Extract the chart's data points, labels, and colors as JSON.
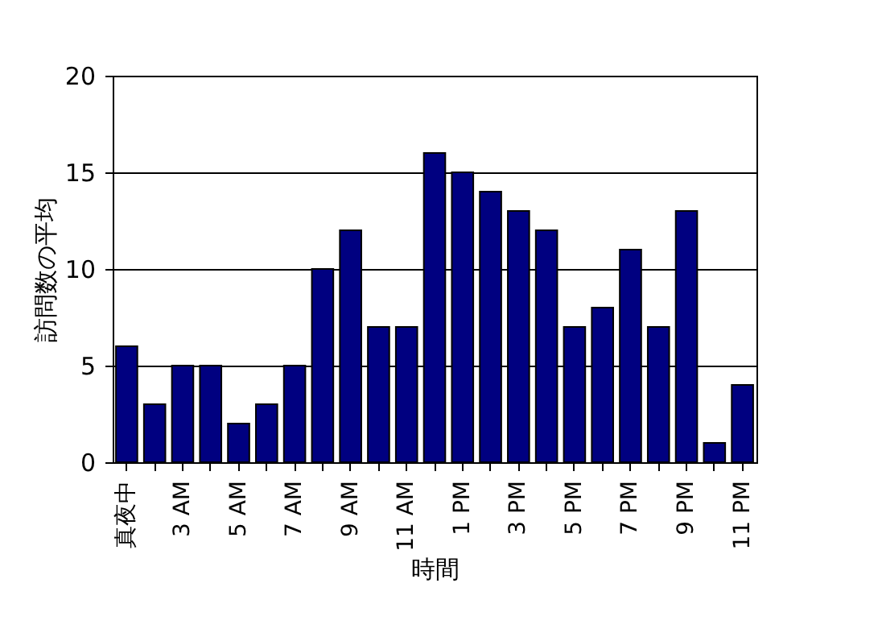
{
  "chart_data": {
    "type": "bar",
    "xlabel": "時間",
    "ylabel": "訪問数の平均",
    "categories": [
      "真夜中",
      null,
      "3 AM",
      null,
      "5 AM",
      null,
      "7 AM",
      null,
      "9 AM",
      null,
      "11 AM",
      null,
      "1 PM",
      null,
      "3 PM",
      null,
      "5 PM",
      null,
      "7 PM",
      null,
      "9 PM",
      null,
      "11 PM"
    ],
    "values": [
      6,
      3,
      5,
      5,
      2,
      3,
      5,
      10,
      12,
      7,
      7,
      16,
      15,
      14,
      13,
      12,
      7,
      8,
      11,
      7,
      13,
      1,
      4
    ],
    "color": "#000080",
    "ylim": [
      0,
      20
    ],
    "yticks": [
      0,
      5,
      10,
      15,
      20
    ],
    "grid": "y",
    "legend": false
  }
}
